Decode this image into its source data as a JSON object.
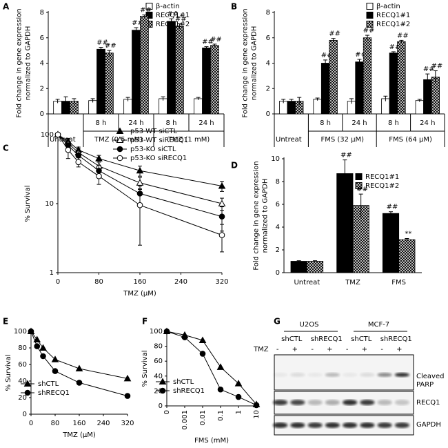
{
  "chart_data": [
    {
      "type": "bar",
      "label": "A",
      "ylabel": [
        "Fold change in gene expression",
        "normalized to GAPDH"
      ],
      "categories": [
        "Untreat",
        "8 h",
        "24 h",
        "8 h",
        "24 h"
      ],
      "groups": [
        "TMZ (0.5 mM)",
        "TMZ (1 mM)"
      ],
      "ylim": [
        0,
        8
      ],
      "yticks": [
        0,
        2,
        4,
        6,
        8
      ],
      "legend": "upper right",
      "series": [
        {
          "name": "β-actin",
          "color": "#ffffff",
          "values": [
            1,
            1.05,
            1.15,
            1.2,
            1.2
          ],
          "errors": [
            0.15,
            0.15,
            0.15,
            0.15,
            0.1
          ]
        },
        {
          "name": "RECQ1#1",
          "color": "#000000",
          "values": [
            1,
            5.1,
            6.6,
            7.3,
            5.2
          ],
          "errors": [
            0.35,
            0.15,
            0.2,
            0.2,
            0.1
          ],
          "annotations": [
            null,
            "##",
            "##",
            "##",
            "##"
          ]
        },
        {
          "name": "RECQ1#2",
          "color": "#808080",
          "hatch": true,
          "values": [
            1,
            4.8,
            7.7,
            6.9,
            5.4
          ],
          "errors": [
            0.2,
            0.2,
            0.1,
            0.2,
            0.1
          ],
          "annotations": [
            null,
            "##",
            "##",
            "##",
            "##"
          ]
        }
      ]
    },
    {
      "type": "bar",
      "label": "B",
      "ylabel": [
        "Fold change in gene expression",
        "normalized to GAPDH"
      ],
      "categories": [
        "Untreat",
        "8 h",
        "24 h",
        "8 h",
        "24 h"
      ],
      "groups": [
        "FMS (32 µM)",
        "FMS (64 µM)"
      ],
      "ylim": [
        0,
        8
      ],
      "yticks": [
        0,
        2,
        4,
        6,
        8
      ],
      "legend": "upper right",
      "series": [
        {
          "name": "β-actin",
          "color": "#ffffff",
          "values": [
            1,
            1.15,
            1.0,
            1.2,
            1.05
          ],
          "errors": [
            0.15,
            0.1,
            0.2,
            0.2,
            0.1
          ]
        },
        {
          "name": "RECQ1#1",
          "color": "#000000",
          "values": [
            1,
            4.0,
            4.1,
            4.8,
            2.7
          ],
          "errors": [
            0.15,
            0.25,
            0.2,
            0.1,
            0.45
          ],
          "annotations": [
            null,
            "##",
            "##",
            "##",
            "##"
          ]
        },
        {
          "name": "RECQ1#2",
          "color": "#808080",
          "hatch": true,
          "values": [
            1,
            5.8,
            6.0,
            5.7,
            2.9
          ],
          "errors": [
            0.3,
            0.15,
            0.2,
            0.1,
            0.5
          ],
          "annotations": [
            null,
            "##",
            "##",
            "##",
            "##"
          ]
        }
      ]
    },
    {
      "type": "line",
      "label": "C",
      "ylabel": [
        "% Survival"
      ],
      "xlabel": "TMZ (µM)",
      "log": true,
      "x": [
        0,
        20,
        40,
        80,
        160,
        320
      ],
      "xlim": [
        0,
        320
      ],
      "xticks": [
        0,
        80,
        160,
        240,
        320
      ],
      "ylim": [
        1,
        100
      ],
      "yticks": [
        1,
        10,
        100
      ],
      "legend": "upper right",
      "series": [
        {
          "name": "p53-WT siCTL",
          "color": "#000000",
          "marker": "triangle",
          "filled": true,
          "values": [
            100,
            80,
            60,
            45,
            30,
            18
          ],
          "errors": [
            0,
            8,
            6,
            5,
            5,
            3
          ]
        },
        {
          "name": "p53-WT siRECQ1",
          "color": "#000000",
          "marker": "triangle",
          "filled": false,
          "values": [
            100,
            75,
            55,
            35,
            20,
            10
          ],
          "errors": [
            0,
            10,
            8,
            5,
            4,
            2
          ]
        },
        {
          "name": "p53-KO siCTL",
          "color": "#000000",
          "marker": "circle",
          "filled": true,
          "values": [
            100,
            70,
            50,
            30,
            14,
            6.5
          ],
          "errors": [
            0,
            10,
            8,
            6,
            4,
            2.5
          ]
        },
        {
          "name": "p53-KO siRECQ1",
          "color": "#000000",
          "marker": "circle",
          "filled": false,
          "values": [
            100,
            60,
            40,
            25,
            9.5,
            3.5
          ],
          "errors": [
            0,
            15,
            6,
            6,
            7,
            1.5
          ]
        }
      ]
    },
    {
      "type": "bar",
      "label": "D",
      "ylabel": [
        "Fold change in gene expression",
        "normalized to GAPDH"
      ],
      "categories": [
        "Untreat",
        "TMZ",
        "FMS"
      ],
      "ylim": [
        0,
        10
      ],
      "yticks": [
        0,
        2,
        4,
        6,
        8,
        10
      ],
      "legend": "upper right",
      "series": [
        {
          "name": "RECQ1#1",
          "color": "#000000",
          "values": [
            1,
            8.7,
            5.2
          ],
          "errors": [
            0.05,
            1.2,
            0.15
          ],
          "annotations": [
            null,
            "##",
            "##"
          ]
        },
        {
          "name": "RECQ1#2",
          "color": "#808080",
          "hatch": true,
          "values": [
            1,
            5.9,
            2.9
          ],
          "errors": [
            0.05,
            1.0,
            0.1
          ],
          "annotations": [
            null,
            "##",
            "**"
          ]
        }
      ]
    },
    {
      "type": "line",
      "label": "E",
      "ylabel": [
        "% Survival"
      ],
      "xlabel": "TMZ (µM)",
      "x": [
        0,
        20,
        40,
        80,
        160,
        320
      ],
      "xlim": [
        0,
        320
      ],
      "xticks": [
        0,
        80,
        160,
        240,
        320
      ],
      "ylim": [
        0,
        100
      ],
      "yticks": [
        0,
        20,
        40,
        60,
        80,
        100
      ],
      "legend": "lower left",
      "series": [
        {
          "name": "shCTL",
          "color": "#000000",
          "marker": "triangle",
          "filled": true,
          "values": [
            100,
            90,
            80,
            66,
            55,
            43
          ]
        },
        {
          "name": "shRECQ1",
          "color": "#000000",
          "marker": "circle",
          "filled": true,
          "values": [
            100,
            82,
            70,
            52,
            38,
            22
          ]
        }
      ]
    },
    {
      "type": "line",
      "label": "F",
      "ylabel": [
        "% Survival"
      ],
      "xlabel": "FMS (mM)",
      "categories": [
        "0",
        "0.001",
        "0.01",
        "0.1",
        "1",
        "10"
      ],
      "ylim": [
        0,
        100
      ],
      "yticks": [
        0,
        20,
        40,
        60,
        80,
        100
      ],
      "legend": "lower left",
      "series": [
        {
          "name": "shCTL",
          "color": "#000000",
          "marker": "triangle",
          "filled": true,
          "values": [
            100,
            95,
            88,
            52,
            30,
            2
          ]
        },
        {
          "name": "shRECQ1",
          "color": "#000000",
          "marker": "circle",
          "filled": true,
          "values": [
            100,
            92,
            70,
            22,
            12,
            1
          ]
        }
      ]
    }
  ],
  "blot": {
    "label": "G",
    "cell_lines": [
      "U2OS",
      "MCF-7"
    ],
    "shrna": [
      "shCTL",
      "shRECQ1",
      "shCTL",
      "shRECQ1"
    ],
    "treatment_label": "TMZ",
    "treatment": [
      "-",
      "+",
      "-",
      "+",
      "-",
      "+",
      "-",
      "+"
    ],
    "rows": [
      "Cleaved PARP",
      "RECQ1",
      "GAPDH"
    ]
  }
}
